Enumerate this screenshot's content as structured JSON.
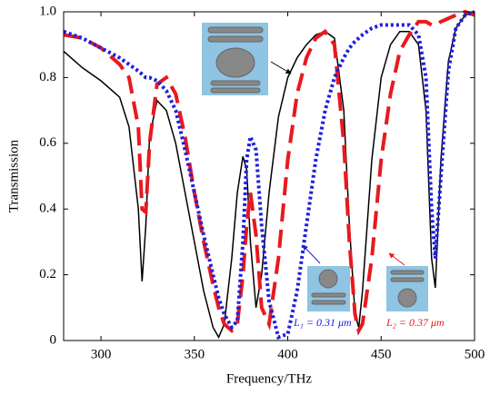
{
  "chart_data": {
    "type": "line",
    "x_label": "Frequency/THz",
    "y_label": "Transmission",
    "xlim": [
      280,
      500
    ],
    "xticks": [
      300,
      350,
      400,
      450,
      500
    ],
    "ylim": [
      0,
      1
    ],
    "yticks": [
      0,
      0.2,
      0.4,
      0.6,
      0.8,
      {
        "value": 1,
        "label": "1.0"
      }
    ],
    "x": [
      280,
      290,
      300,
      310,
      315,
      320,
      322,
      324,
      326,
      330,
      335,
      340,
      345,
      350,
      355,
      360,
      363,
      366,
      370,
      373,
      376,
      378,
      380,
      383,
      386,
      390,
      395,
      400,
      405,
      410,
      415,
      420,
      425,
      430,
      433,
      436,
      438,
      440,
      445,
      450,
      455,
      460,
      465,
      470,
      474,
      477,
      479,
      482,
      486,
      490,
      495,
      500
    ],
    "series": [
      {
        "color": "#000000",
        "style": "solid",
        "values": [
          0.88,
          0.83,
          0.79,
          0.74,
          0.65,
          0.4,
          0.18,
          0.35,
          0.62,
          0.73,
          0.7,
          0.6,
          0.45,
          0.3,
          0.15,
          0.04,
          0.01,
          0.05,
          0.25,
          0.45,
          0.56,
          0.52,
          0.3,
          0.1,
          0.2,
          0.45,
          0.68,
          0.8,
          0.86,
          0.9,
          0.93,
          0.94,
          0.92,
          0.7,
          0.35,
          0.08,
          0.04,
          0.15,
          0.55,
          0.8,
          0.9,
          0.94,
          0.94,
          0.9,
          0.7,
          0.25,
          0.16,
          0.55,
          0.85,
          0.95,
          0.99,
          1.0
        ]
      },
      {
        "color": "#e8191e",
        "style": "dashed",
        "values": [
          0.93,
          0.92,
          0.89,
          0.84,
          0.8,
          0.65,
          0.4,
          0.39,
          0.6,
          0.78,
          0.8,
          0.75,
          0.62,
          0.45,
          0.3,
          0.17,
          0.1,
          0.05,
          0.03,
          0.05,
          0.2,
          0.35,
          0.45,
          0.32,
          0.1,
          0.05,
          0.25,
          0.55,
          0.75,
          0.86,
          0.92,
          0.94,
          0.9,
          0.6,
          0.3,
          0.08,
          0.03,
          0.05,
          0.25,
          0.55,
          0.75,
          0.88,
          0.93,
          0.97,
          0.97,
          0.96,
          0.96,
          0.97,
          0.98,
          0.99,
          1.0,
          0.99
        ]
      },
      {
        "color": "#1f1fdd",
        "style": "dotted",
        "values": [
          0.94,
          0.92,
          0.89,
          0.86,
          0.84,
          0.82,
          0.81,
          0.8,
          0.8,
          0.79,
          0.76,
          0.7,
          0.58,
          0.45,
          0.32,
          0.2,
          0.13,
          0.08,
          0.04,
          0.06,
          0.3,
          0.55,
          0.62,
          0.58,
          0.35,
          0.12,
          0.01,
          0.02,
          0.15,
          0.35,
          0.55,
          0.7,
          0.8,
          0.86,
          0.89,
          0.91,
          0.92,
          0.93,
          0.95,
          0.96,
          0.96,
          0.96,
          0.96,
          0.93,
          0.8,
          0.4,
          0.25,
          0.5,
          0.82,
          0.95,
          0.99,
          1.0
        ]
      }
    ],
    "annotations": [
      {
        "text": "L₁ = 0.31 μm",
        "color": "#1f1fdd"
      },
      {
        "text": "L₂ = 0.37 μm",
        "color": "#e8191e"
      }
    ]
  }
}
